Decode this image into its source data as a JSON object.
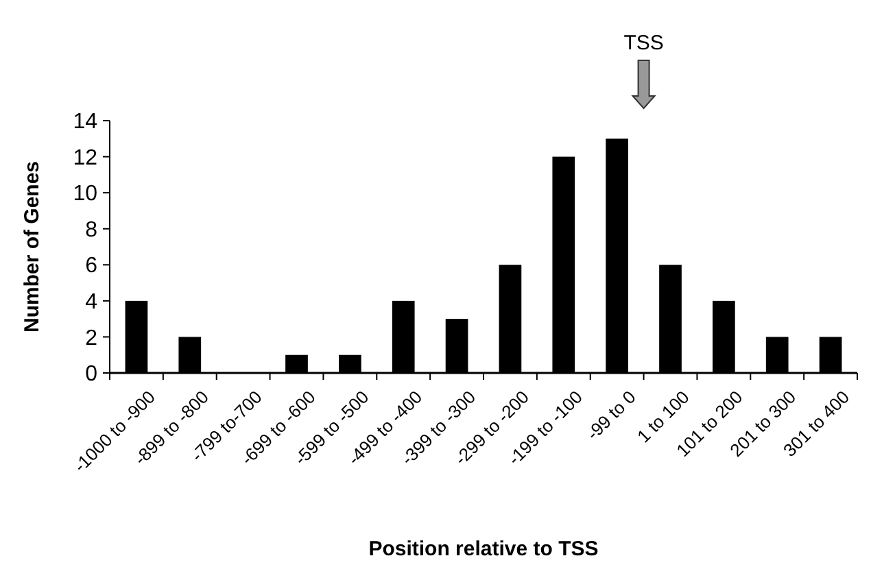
{
  "chart_data": {
    "type": "bar",
    "xlabel": "Position relative to TSS",
    "ylabel": "Number of Genes",
    "categories": [
      "-1000 to -900",
      "-899 to -800",
      "-799 to-700",
      "-699 to -600",
      "-599 to -500",
      "-499 to -400",
      "-399 to -300",
      "-299 to -200",
      "-199 to -100",
      "-99 to 0",
      "1 to 100",
      "101 to 200",
      "201 to 300",
      "301 to 400"
    ],
    "values": [
      4,
      2,
      0,
      1,
      1,
      4,
      3,
      6,
      12,
      13,
      6,
      4,
      2,
      2
    ],
    "color": "#000000",
    "ylim": [
      0,
      14
    ],
    "yticks": [
      0,
      2,
      4,
      6,
      8,
      10,
      12,
      14
    ],
    "grid": false,
    "annotations": [
      "TSS"
    ]
  }
}
